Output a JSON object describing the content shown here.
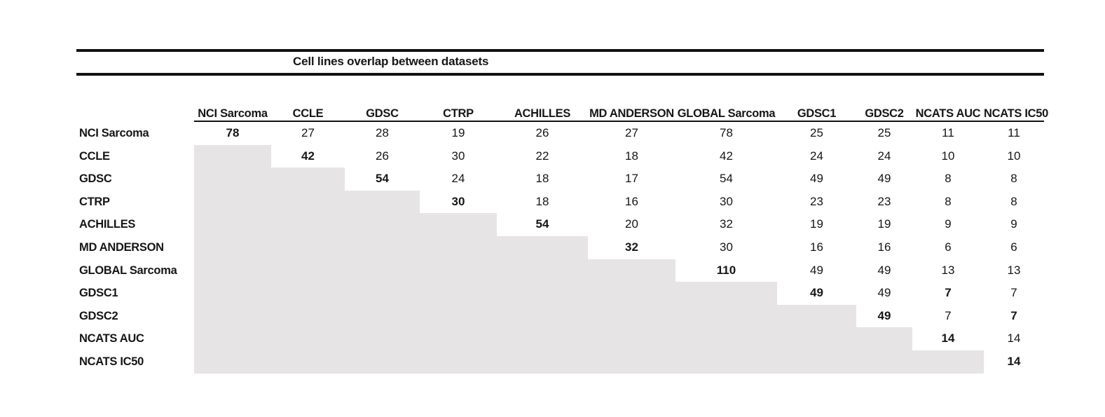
{
  "title": "Cell lines overlap between datasets",
  "table": {
    "columns": [
      "NCI Sarcoma",
      "CCLE",
      "GDSC",
      "CTRP",
      "ACHILLES",
      "MD ANDERSON",
      "GLOBAL Sarcoma",
      "GDSC1",
      "GDSC2",
      "NCATS AUC",
      "NCATS IC50"
    ],
    "rows": [
      {
        "label": "NCI Sarcoma",
        "values": [
          78,
          27,
          28,
          19,
          26,
          27,
          78,
          25,
          25,
          11,
          11
        ]
      },
      {
        "label": "CCLE",
        "values": [
          null,
          42,
          26,
          30,
          22,
          18,
          42,
          24,
          24,
          10,
          10
        ]
      },
      {
        "label": "GDSC",
        "values": [
          null,
          null,
          54,
          24,
          18,
          17,
          54,
          49,
          49,
          8,
          8
        ]
      },
      {
        "label": "CTRP",
        "values": [
          null,
          null,
          null,
          30,
          18,
          16,
          30,
          23,
          23,
          8,
          8
        ]
      },
      {
        "label": "ACHILLES",
        "values": [
          null,
          null,
          null,
          null,
          54,
          20,
          32,
          19,
          19,
          9,
          9
        ]
      },
      {
        "label": "MD ANDERSON",
        "values": [
          null,
          null,
          null,
          null,
          null,
          32,
          30,
          16,
          16,
          6,
          6
        ]
      },
      {
        "label": "GLOBAL Sarcoma",
        "values": [
          null,
          null,
          null,
          null,
          null,
          null,
          110,
          49,
          49,
          13,
          13
        ]
      },
      {
        "label": "GDSC1",
        "values": [
          null,
          null,
          null,
          null,
          null,
          null,
          null,
          49,
          49,
          7,
          7
        ]
      },
      {
        "label": "GDSC2",
        "values": [
          null,
          null,
          null,
          null,
          null,
          null,
          null,
          null,
          49,
          7,
          7
        ]
      },
      {
        "label": "NCATS AUC",
        "values": [
          null,
          null,
          null,
          null,
          null,
          null,
          null,
          null,
          null,
          14,
          14
        ]
      },
      {
        "label": "NCATS IC50",
        "values": [
          null,
          null,
          null,
          null,
          null,
          null,
          null,
          null,
          null,
          null,
          14
        ]
      }
    ],
    "bold_cells": [
      [
        0,
        0
      ],
      [
        1,
        1
      ],
      [
        2,
        2
      ],
      [
        3,
        3
      ],
      [
        4,
        4
      ],
      [
        5,
        5
      ],
      [
        6,
        6
      ],
      [
        7,
        7
      ],
      [
        7,
        9
      ],
      [
        8,
        8
      ],
      [
        8,
        10
      ],
      [
        9,
        9
      ],
      [
        10,
        10
      ]
    ]
  },
  "colors": {
    "shaded_cell": "#e6e4e5",
    "rule": "#121212",
    "text": "#161616"
  }
}
